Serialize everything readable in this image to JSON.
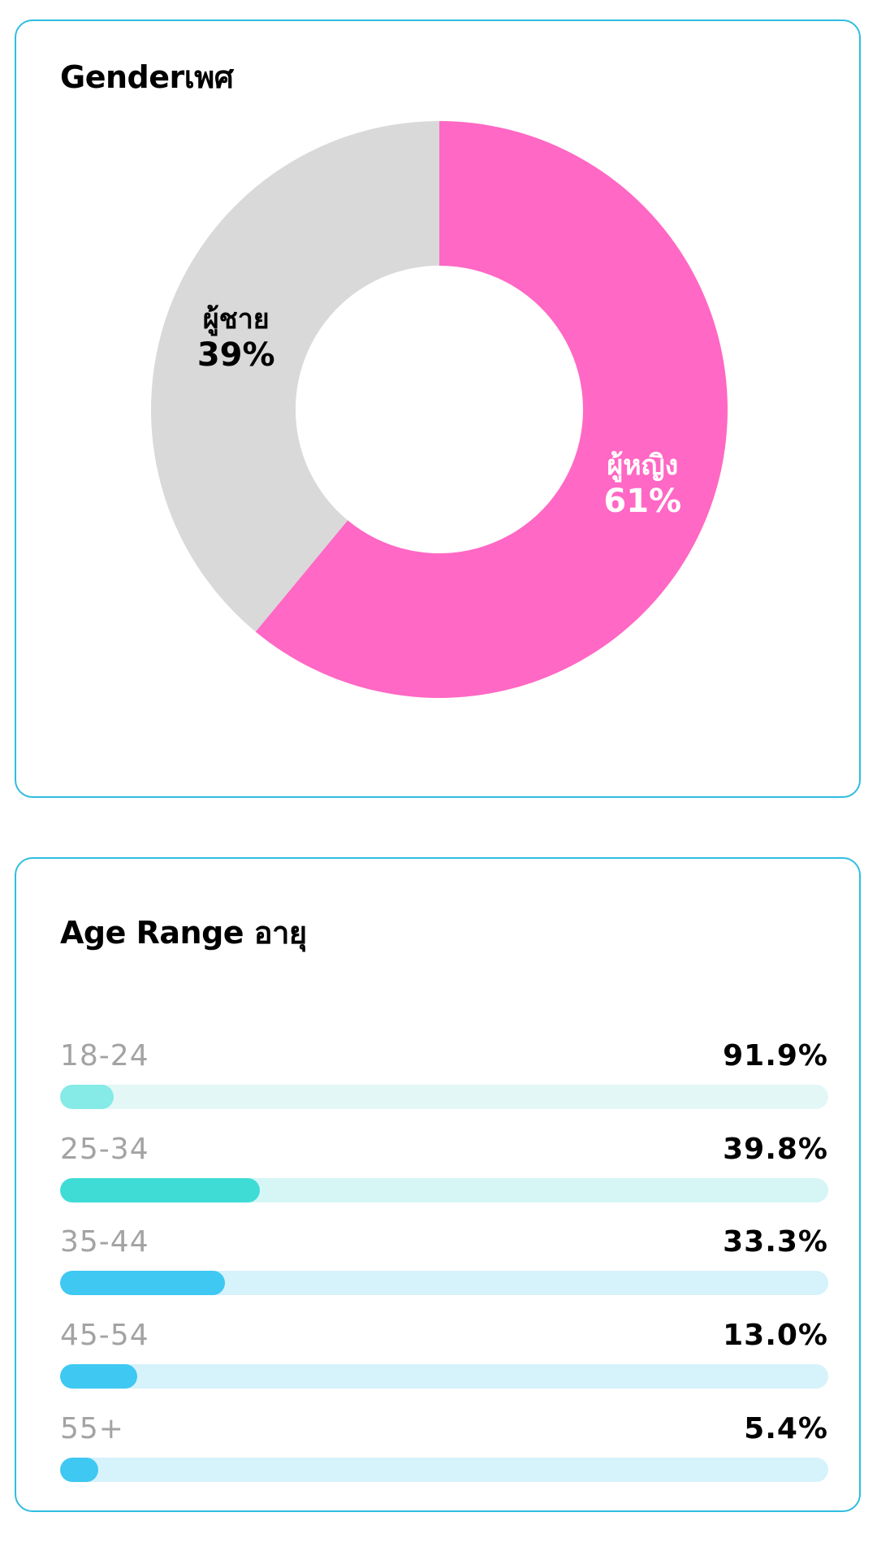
{
  "gender": {
    "title": "Genderเพศ",
    "chart_data": {
      "type": "pie",
      "categories": [
        "ผู้หญิง",
        "ผู้ชาย"
      ],
      "values": [
        61,
        39
      ],
      "colors": [
        "#ff68c4",
        "#d9d9d9"
      ],
      "label_colors": [
        "#ffffff",
        "#000000"
      ],
      "slice_labels": [
        {
          "name": "ผู้หญิง",
          "value": "61%"
        },
        {
          "name": "ผู้ชาย",
          "value": "39%"
        }
      ]
    }
  },
  "age": {
    "title": "Age Range อายุ",
    "track_colors": [
      "#e3f8f6",
      "#d6f6f5",
      "#d6f2fb",
      "#d6f2fb",
      "#d6f2fb"
    ],
    "fill_colors": [
      "#86eae6",
      "#3fdcd6",
      "#3ec8f2",
      "#3ec8f2",
      "#3ec8f2"
    ],
    "chart_data": {
      "type": "bar",
      "categories": [
        "18-24",
        "25-34",
        "35-44",
        "45-54",
        "55+"
      ],
      "values": [
        91.9,
        39.8,
        33.3,
        13.0,
        5.4
      ],
      "value_labels": [
        "91.9%",
        "39.8%",
        "33.3%",
        "13.0%",
        "5.4%"
      ],
      "fill_fractions": [
        0.07,
        0.26,
        0.215,
        0.1,
        0.05
      ]
    }
  }
}
